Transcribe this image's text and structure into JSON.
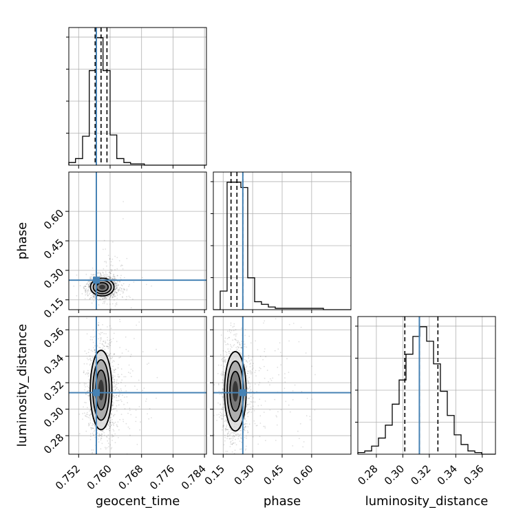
{
  "chart_data": {
    "type": "corner",
    "parameters": [
      "geocent_time",
      "phase",
      "luminosity_distance"
    ],
    "truths": {
      "geocent_time": 0.7565,
      "phase": 0.25,
      "luminosity_distance": 0.3125
    },
    "truth_color": "#4682b4",
    "ranges": {
      "geocent_time": [
        0.7495,
        0.7845
      ],
      "phase": [
        0.1,
        0.8
      ],
      "luminosity_distance": [
        0.266,
        0.37
      ]
    },
    "ticks": {
      "geocent_time": [
        0.752,
        0.76,
        0.768,
        0.776,
        0.784
      ],
      "phase": [
        0.15,
        0.3,
        0.45,
        0.6
      ],
      "luminosity_distance": [
        0.28,
        0.3,
        0.32,
        0.34,
        0.36
      ]
    },
    "tick_labels": {
      "geocent_time": [
        "0.752",
        "0.760",
        "0.768",
        "0.776",
        "0.784"
      ],
      "phase": [
        "0.15",
        "0.30",
        "0.45",
        "0.60"
      ],
      "luminosity_distance": [
        "0.28",
        "0.30",
        "0.32",
        "0.34",
        "0.36"
      ]
    },
    "quantiles": {
      "geocent_time": [
        0.7562,
        0.7577,
        0.7592
      ],
      "phase": [
        0.19,
        0.22,
        0.25
      ],
      "luminosity_distance": [
        0.3015,
        0.3125,
        0.3265
      ]
    },
    "histograms": {
      "geocent_time": {
        "edges": [
          0.7495,
          0.7512,
          0.753,
          0.7547,
          0.7565,
          0.7582,
          0.76,
          0.7617,
          0.7635,
          0.7652,
          0.767,
          0.7687,
          0.7705,
          0.7722,
          0.774,
          0.7757,
          0.7775,
          0.7792,
          0.781,
          0.7827,
          0.7845
        ],
        "counts": [
          2,
          5,
          22,
          72,
          97,
          72,
          23,
          5,
          2,
          1,
          1,
          0,
          0,
          0,
          0,
          0,
          0,
          0,
          0,
          0
        ]
      },
      "phase": {
        "edges": [
          0.1,
          0.135,
          0.17,
          0.205,
          0.24,
          0.275,
          0.31,
          0.345,
          0.38,
          0.415,
          0.45,
          0.485,
          0.52,
          0.555,
          0.59,
          0.625,
          0.66,
          0.695,
          0.73,
          0.765,
          0.8
        ],
        "counts": [
          0,
          14,
          96,
          96,
          92,
          24,
          6,
          4,
          2,
          1,
          1,
          1,
          1,
          1,
          1,
          1,
          0,
          0,
          0,
          0
        ]
      },
      "luminosity_distance": {
        "edges": [
          0.266,
          0.2712,
          0.2764,
          0.2816,
          0.2868,
          0.292,
          0.2972,
          0.3024,
          0.3076,
          0.3128,
          0.318,
          0.3232,
          0.3284,
          0.3336,
          0.3388,
          0.344,
          0.3492,
          0.3544,
          0.3596,
          0.3648,
          0.37
        ],
        "counts": [
          1,
          2,
          5,
          10,
          18,
          31,
          46,
          62,
          73,
          79,
          70,
          56,
          39,
          24,
          12,
          6,
          2,
          1,
          0,
          0
        ]
      }
    },
    "contour_pairs": [
      {
        "x": "geocent_time",
        "y": "phase",
        "center": [
          0.758,
          0.215
        ],
        "sigma": [
          0.0012,
          0.018
        ],
        "tail": [
          0.762,
          0.4
        ]
      },
      {
        "x": "geocent_time",
        "y": "luminosity_distance",
        "center": [
          0.7577,
          0.3145
        ],
        "sigma": [
          0.0011,
          0.012
        ],
        "tail": [
          0.765,
          0.32
        ]
      },
      {
        "x": "phase",
        "y": "luminosity_distance",
        "center": [
          0.212,
          0.3135
        ],
        "sigma": [
          0.022,
          0.012
        ],
        "tail": [
          0.45,
          0.32
        ]
      }
    ],
    "xlabels": [
      "geocent_time",
      "phase",
      "luminosity_distance"
    ],
    "ylabels": [
      "",
      "phase",
      "luminosity_distance"
    ],
    "grid": true
  }
}
